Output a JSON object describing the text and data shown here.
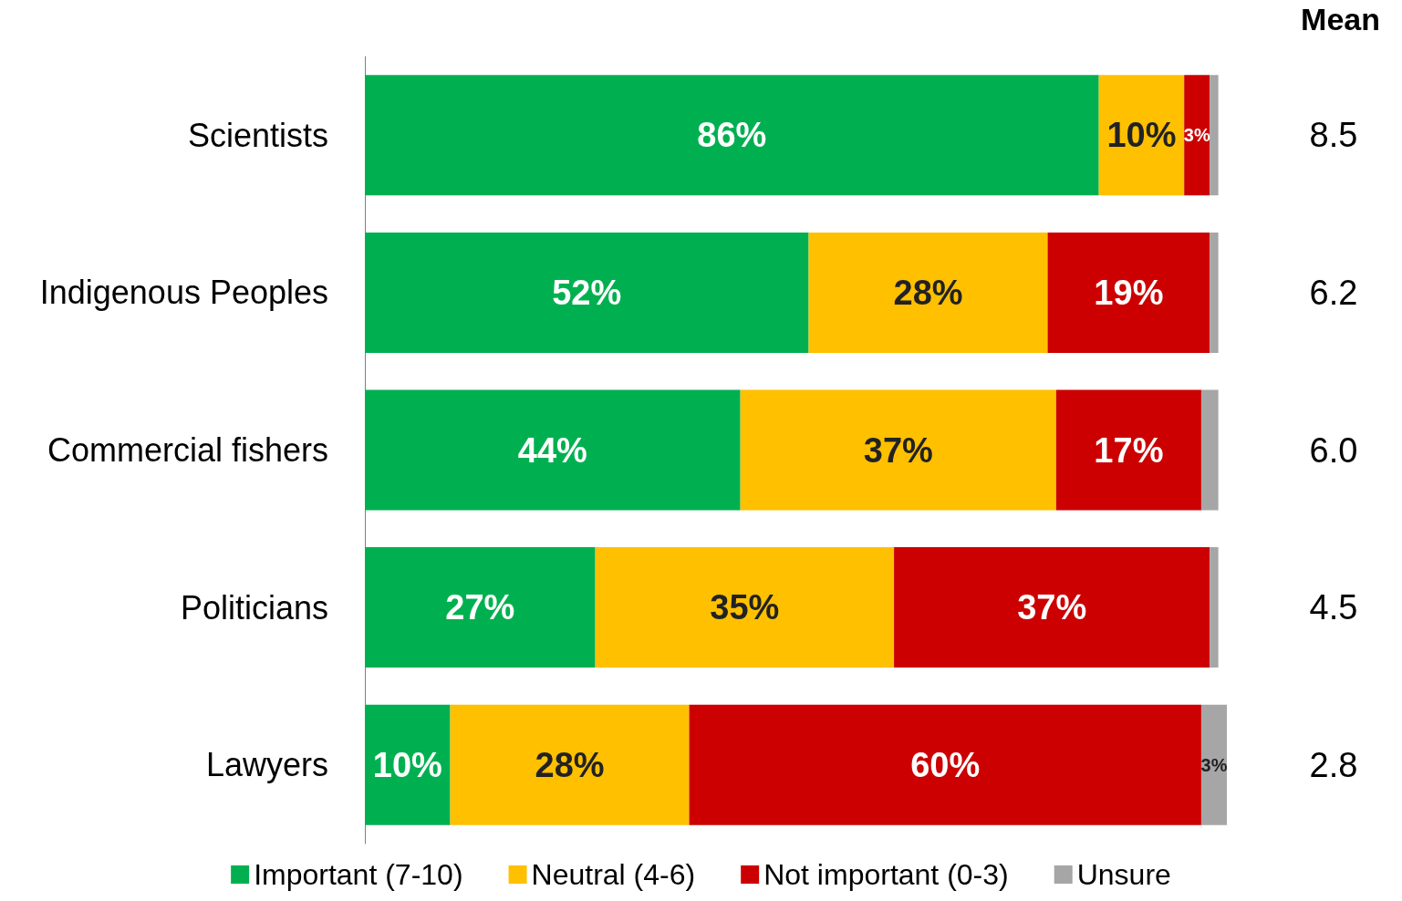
{
  "chart_data": {
    "type": "bar",
    "orientation": "horizontal",
    "stacked": true,
    "categories": [
      "Scientists",
      "Indigenous Peoples",
      "Commercial fishers",
      "Politicians",
      "Lawyers"
    ],
    "series": [
      {
        "name": "Important (7-10)",
        "color": "#00b050",
        "values": [
          86,
          52,
          44,
          27,
          10
        ],
        "value_labels": [
          "86%",
          "52%",
          "44%",
          "27%",
          "10%"
        ]
      },
      {
        "name": "Neutral (4-6)",
        "color": "#ffc000",
        "values": [
          10,
          28,
          37,
          35,
          28
        ],
        "value_labels": [
          "10%",
          "28%",
          "37%",
          "35%",
          "28%"
        ]
      },
      {
        "name": "Not important (0-3)",
        "color": "#cc0000",
        "values": [
          3,
          19,
          17,
          37,
          60
        ],
        "value_labels": [
          "3%",
          "19%",
          "17%",
          "37%",
          "60%"
        ]
      },
      {
        "name": "Unsure",
        "color": "#a6a6a6",
        "values": [
          1,
          1,
          2,
          1,
          3
        ],
        "value_labels": [
          null,
          null,
          null,
          null,
          "3%"
        ]
      }
    ],
    "xlim": [
      0,
      101
    ],
    "tick_labels": "y",
    "grid": false,
    "legend": "bottom",
    "annotations": [
      "Mean",
      "8.5",
      "6.2",
      "6.0",
      "4.5",
      "2.8"
    ]
  }
}
